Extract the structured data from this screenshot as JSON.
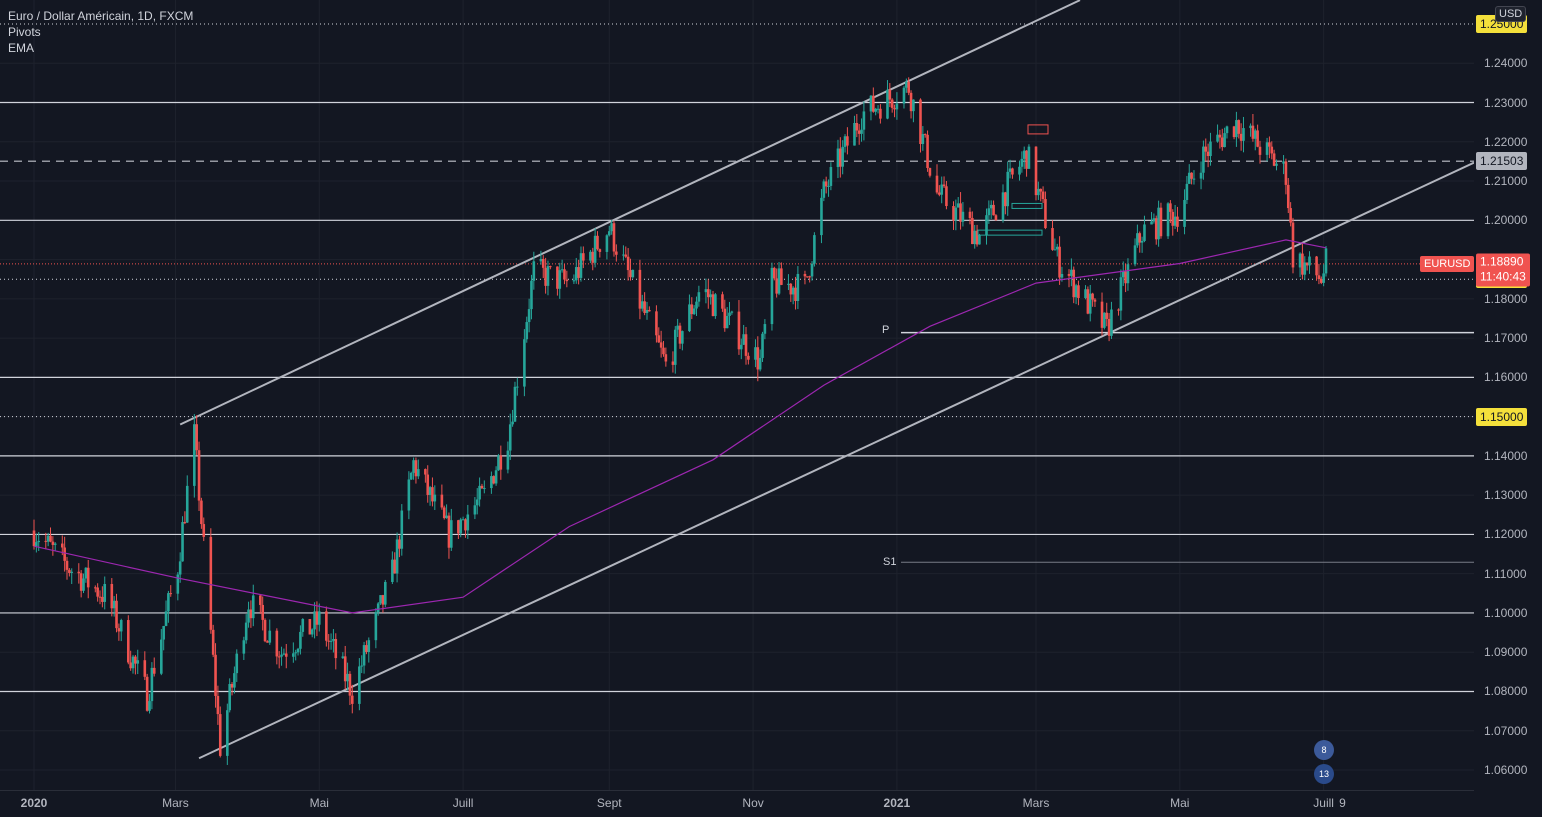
{
  "header": {
    "symbol_title": "Euro / Dollar Américain, 1D, FXCM",
    "indicators": [
      "Pivots",
      "EMA"
    ]
  },
  "price_axis": {
    "currency_button": "USD",
    "ticks": [
      "1.24000",
      "1.23000",
      "1.22000",
      "1.21000",
      "1.20000",
      "1.19000",
      "1.18000",
      "1.17000",
      "1.16000",
      "1.15000",
      "1.14000",
      "1.13000",
      "1.12000",
      "1.11000",
      "1.10000",
      "1.09000",
      "1.08000",
      "1.07000",
      "1.06000"
    ],
    "highlight_labels": {
      "top_yellow": "1.25000",
      "dashed_level": "1.21503",
      "level_1185": "1.18500",
      "level_115": "1.15000"
    },
    "current_price": "1.18890",
    "countdown": "11:40:43",
    "symbol_tag": "EURUSD"
  },
  "time_axis": {
    "labels": [
      "2020",
      "Mars",
      "Mai",
      "Juill",
      "Sept",
      "Nov",
      "2021",
      "Mars",
      "Mai",
      "Juill",
      "9"
    ]
  },
  "pivots": {
    "p_label": "P",
    "s1_label": "S1"
  },
  "events": {
    "us_count": "8",
    "eu_count": "13"
  },
  "colors": {
    "background": "#131722",
    "bull": "#26a69a",
    "bear": "#ef5350",
    "ema": "#9c27b0",
    "channel": "#b2b5be",
    "yellow_label": "#f4e03b"
  },
  "chart_data": {
    "type": "candlestick",
    "title": "Euro / Dollar Américain, 1D, FXCM",
    "ylim": [
      1.055,
      1.2565
    ],
    "horizontal_levels": {
      "solid": [
        1.23,
        1.2,
        1.16,
        1.14,
        1.12,
        1.1,
        1.08
      ],
      "dotted": [
        1.25,
        1.185,
        1.15
      ],
      "dashed": [
        1.21503
      ]
    },
    "current_price": 1.1889,
    "pivot_p": 1.1714,
    "pivot_s1": 1.1129,
    "anchor_closes": [
      {
        "date": "2020-01-01",
        "close": 1.121
      },
      {
        "date": "2020-01-15",
        "close": 1.112
      },
      {
        "date": "2020-02-01",
        "close": 1.104
      },
      {
        "date": "2020-02-18",
        "close": 1.079
      },
      {
        "date": "2020-03-02",
        "close": 1.112
      },
      {
        "date": "2020-03-09",
        "close": 1.145
      },
      {
        "date": "2020-03-20",
        "close": 1.066
      },
      {
        "date": "2020-04-01",
        "close": 1.103
      },
      {
        "date": "2020-04-15",
        "close": 1.09
      },
      {
        "date": "2020-05-01",
        "close": 1.098
      },
      {
        "date": "2020-05-15",
        "close": 1.08
      },
      {
        "date": "2020-06-01",
        "close": 1.11
      },
      {
        "date": "2020-06-10",
        "close": 1.138
      },
      {
        "date": "2020-06-25",
        "close": 1.12
      },
      {
        "date": "2020-07-10",
        "close": 1.13
      },
      {
        "date": "2020-07-20",
        "close": 1.145
      },
      {
        "date": "2020-07-31",
        "close": 1.187
      },
      {
        "date": "2020-08-15",
        "close": 1.184
      },
      {
        "date": "2020-09-01",
        "close": 1.198
      },
      {
        "date": "2020-09-25",
        "close": 1.163
      },
      {
        "date": "2020-10-10",
        "close": 1.183
      },
      {
        "date": "2020-11-04",
        "close": 1.164
      },
      {
        "date": "2020-11-09",
        "close": 1.184
      },
      {
        "date": "2020-11-23",
        "close": 1.183
      },
      {
        "date": "2020-12-01",
        "close": 1.207
      },
      {
        "date": "2020-12-17",
        "close": 1.227
      },
      {
        "date": "2021-01-06",
        "close": 1.234
      },
      {
        "date": "2021-01-18",
        "close": 1.207
      },
      {
        "date": "2021-02-05",
        "close": 1.196
      },
      {
        "date": "2021-02-25",
        "close": 1.217
      },
      {
        "date": "2021-03-10",
        "close": 1.19
      },
      {
        "date": "2021-03-31",
        "close": 1.172
      },
      {
        "date": "2021-04-15",
        "close": 1.197
      },
      {
        "date": "2021-04-30",
        "close": 1.202
      },
      {
        "date": "2021-05-10",
        "close": 1.216
      },
      {
        "date": "2021-05-25",
        "close": 1.225
      },
      {
        "date": "2021-06-15",
        "close": 1.212
      },
      {
        "date": "2021-06-18",
        "close": 1.191
      },
      {
        "date": "2021-06-30",
        "close": 1.185
      },
      {
        "date": "2021-07-02",
        "close": 1.189
      }
    ],
    "ema": [
      {
        "date": "2020-01-01",
        "value": 1.117
      },
      {
        "date": "2020-03-01",
        "value": 1.109
      },
      {
        "date": "2020-05-15",
        "value": 1.1
      },
      {
        "date": "2020-07-01",
        "value": 1.104
      },
      {
        "date": "2020-08-15",
        "value": 1.122
      },
      {
        "date": "2020-10-15",
        "value": 1.139
      },
      {
        "date": "2020-12-01",
        "value": 1.158
      },
      {
        "date": "2021-01-15",
        "value": 1.173
      },
      {
        "date": "2021-03-01",
        "value": 1.184
      },
      {
        "date": "2021-05-01",
        "value": 1.189
      },
      {
        "date": "2021-06-15",
        "value": 1.195
      },
      {
        "date": "2021-07-02",
        "value": 1.193
      }
    ],
    "channel": {
      "upper": [
        {
          "date": "2020-03-03",
          "value": 1.148
        },
        {
          "date": "2021-01-06",
          "value": 1.2355
        }
      ],
      "lower": [
        {
          "date": "2020-03-11",
          "value": 1.063
        },
        {
          "date": "2021-03-31",
          "value": 1.171
        }
      ]
    }
  }
}
